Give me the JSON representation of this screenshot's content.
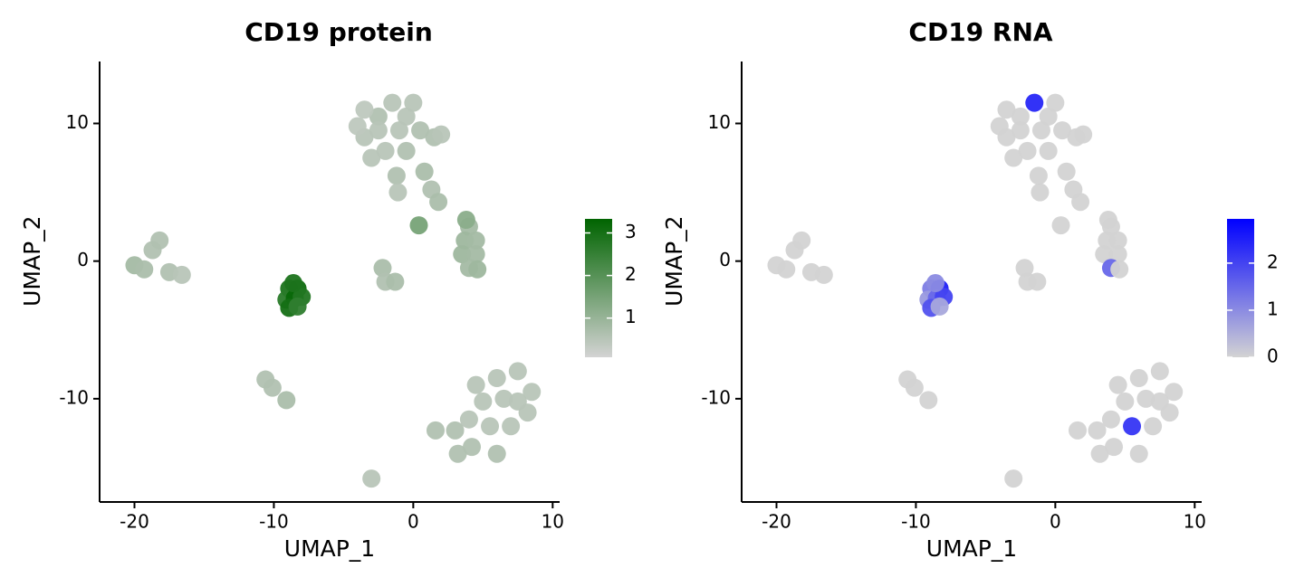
{
  "chart_data": [
    {
      "type": "scatter",
      "title": "CD19 protein",
      "x_label": "UMAP_1",
      "y_label": "UMAP_2",
      "xlim": [
        -22.5,
        10.5
      ],
      "ylim": [
        -17.5,
        14.5
      ],
      "xticks": [
        -20,
        -10,
        0,
        10
      ],
      "yticks": [
        -10,
        0,
        10
      ],
      "low_color": "#d3d3d3",
      "high_color": "#006400",
      "colorbar": {
        "lim": [
          0.08,
          3.33
        ],
        "ticks": [
          1,
          2,
          3
        ]
      },
      "x": [
        -3.5,
        -2.5,
        -1.5,
        -0.5,
        0.5,
        -3.5,
        -2,
        -0.5,
        -3,
        -1,
        -2.5,
        1.5,
        2,
        0,
        -4,
        -1.2,
        -1.1,
        0.8,
        1.3,
        1.8,
        0.4,
        4,
        3.7,
        4.5,
        3.5,
        4.5,
        4,
        4.6,
        3.8,
        -2.2,
        -2,
        -1.3,
        -20,
        -19.3,
        -18.7,
        -18.2,
        -17.5,
        -16.6,
        -8.9,
        -8.3,
        -9.1,
        -8.5,
        -8,
        -8.9,
        -8.3,
        -8.6,
        -10.6,
        -10.1,
        -9.1,
        4.5,
        6,
        7.5,
        8.5,
        8.2,
        7,
        5.5,
        4,
        5,
        6.5,
        7.5,
        3,
        1.6,
        3.2,
        4.2,
        6,
        -3
      ],
      "y": [
        9,
        10.5,
        11.5,
        10.5,
        9.5,
        11,
        8,
        8,
        7.5,
        9.5,
        9.5,
        9,
        9.2,
        11.5,
        9.8,
        6.2,
        5,
        6.5,
        5.2,
        4.3,
        2.6,
        2.5,
        1.5,
        1.5,
        0.5,
        0.5,
        -0.5,
        -0.6,
        3,
        -0.5,
        -1.5,
        -1.5,
        -0.3,
        -0.6,
        0.8,
        1.5,
        -0.8,
        -1,
        -2,
        -2,
        -2.8,
        -2.7,
        -2.6,
        -3.4,
        -3.3,
        -1.6,
        -8.6,
        -9.2,
        -10.1,
        -9,
        -8.5,
        -8,
        -9.5,
        -11,
        -12,
        -12,
        -11.5,
        -10.2,
        -10,
        -10.2,
        -12.3,
        -12.3,
        -14,
        -13.5,
        -14,
        -15.8
      ],
      "values": [
        0.5,
        0.6,
        0.5,
        0.5,
        0.6,
        0.4,
        0.5,
        0.6,
        0.5,
        0.5,
        0.5,
        0.6,
        0.5,
        0.5,
        0.4,
        0.6,
        0.5,
        0.7,
        0.6,
        0.7,
        1.5,
        0.8,
        0.9,
        0.8,
        0.9,
        0.8,
        0.8,
        0.9,
        1.2,
        0.7,
        0.6,
        0.7,
        0.8,
        0.7,
        0.6,
        0.6,
        0.6,
        0.5,
        2.9,
        3.1,
        2.7,
        3.2,
        2.8,
        3.0,
        2.6,
        2.9,
        0.6,
        0.6,
        0.7,
        0.5,
        0.5,
        0.5,
        0.5,
        0.5,
        0.5,
        0.5,
        0.5,
        0.5,
        0.5,
        0.5,
        0.6,
        0.6,
        0.6,
        0.6,
        0.6,
        0.5
      ]
    },
    {
      "type": "scatter",
      "title": "CD19 RNA",
      "x_label": "UMAP_1",
      "y_label": "UMAP_2",
      "xlim": [
        -22.5,
        10.5
      ],
      "ylim": [
        -17.5,
        14.5
      ],
      "xticks": [
        -20,
        -10,
        0,
        10
      ],
      "yticks": [
        -10,
        0,
        10
      ],
      "low_color": "#d3d3d3",
      "high_color": "#0000ff",
      "colorbar": {
        "lim": [
          0,
          2.94
        ],
        "ticks": [
          0,
          1,
          2
        ]
      },
      "x": [
        -3.5,
        -2.5,
        -1.5,
        -0.5,
        0.5,
        -3.5,
        -2,
        -0.5,
        -3,
        -1,
        -2.5,
        1.5,
        2,
        0,
        -4,
        -1.2,
        -1.1,
        0.8,
        1.3,
        1.8,
        0.4,
        4,
        3.7,
        4.5,
        3.5,
        4.5,
        4,
        4.6,
        3.8,
        -2.2,
        -2,
        -1.3,
        -20,
        -19.3,
        -18.7,
        -18.2,
        -17.5,
        -16.6,
        -8.9,
        -8.3,
        -9.1,
        -8.5,
        -8,
        -8.9,
        -8.3,
        -8.6,
        -10.6,
        -10.1,
        -9.1,
        4.5,
        6,
        7.5,
        8.5,
        8.2,
        7,
        5.5,
        4,
        5,
        6.5,
        7.5,
        3,
        1.6,
        3.2,
        4.2,
        6,
        -3
      ],
      "y": [
        9,
        10.5,
        11.5,
        10.5,
        9.5,
        11,
        8,
        8,
        7.5,
        9.5,
        9.5,
        9,
        9.2,
        11.5,
        9.8,
        6.2,
        5,
        6.5,
        5.2,
        4.3,
        2.6,
        2.5,
        1.5,
        1.5,
        0.5,
        0.5,
        -0.5,
        -0.6,
        3,
        -0.5,
        -1.5,
        -1.5,
        -0.3,
        -0.6,
        0.8,
        1.5,
        -0.8,
        -1,
        -2,
        -2,
        -2.8,
        -2.7,
        -2.6,
        -3.4,
        -3.3,
        -1.6,
        -8.6,
        -9.2,
        -10.1,
        -9,
        -8.5,
        -8,
        -9.5,
        -11,
        -12,
        -12,
        -11.5,
        -10.2,
        -10,
        -10.2,
        -12.3,
        -12.3,
        -14,
        -13.5,
        -14,
        -15.8
      ],
      "values": [
        0,
        0,
        2.4,
        0,
        0,
        0,
        0,
        0,
        0,
        0,
        0,
        0,
        0,
        0,
        0,
        0,
        0,
        0,
        0,
        0,
        0,
        0,
        0,
        0,
        0,
        0,
        1.5,
        0,
        0,
        0,
        0,
        0,
        0,
        0,
        0,
        0,
        0,
        0,
        1.2,
        2.5,
        0.8,
        1.5,
        2.0,
        1.8,
        0.6,
        1.0,
        0,
        0,
        0,
        0,
        0,
        0,
        0,
        0,
        0,
        2.2,
        0,
        0,
        0,
        0,
        0,
        0,
        0,
        0,
        0,
        0
      ]
    }
  ]
}
